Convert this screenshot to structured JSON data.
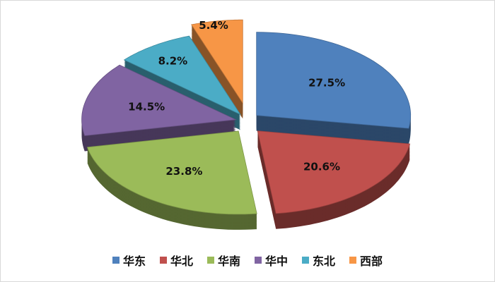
{
  "chart_data": {
    "type": "pie",
    "style": "3d-exploded",
    "categories": [
      "华东",
      "华北",
      "华南",
      "华中",
      "东北",
      "西部"
    ],
    "values": [
      27.5,
      20.6,
      23.8,
      14.5,
      8.2,
      5.4
    ],
    "labels": [
      "27.5%",
      "20.6%",
      "23.8%",
      "14.5%",
      "8.2%",
      "5.4%"
    ],
    "colors": [
      "#4f81bd",
      "#c0504d",
      "#9bbb59",
      "#8064a2",
      "#4bacc6",
      "#f79646"
    ],
    "legend_position": "bottom"
  }
}
